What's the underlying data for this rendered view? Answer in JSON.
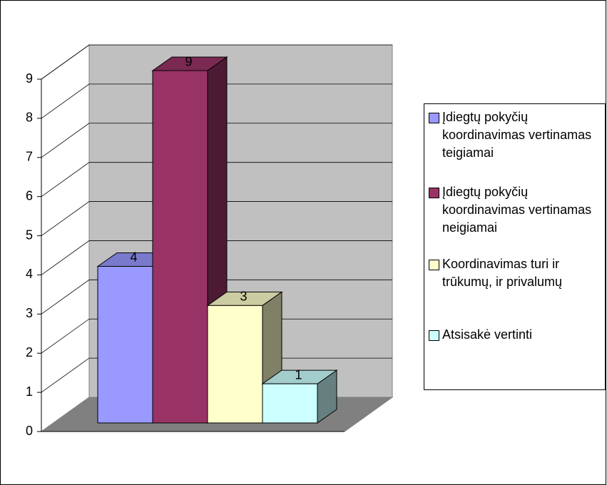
{
  "chart_data": {
    "type": "bar3d",
    "categories": [
      null
    ],
    "series": [
      {
        "name": "Įdiegtų pokyčių koordinavimas vertinamas teigiamai",
        "color": "#9999ff",
        "values": [
          4
        ]
      },
      {
        "name": "Įdiegtų pokyčių koordinavimas vertinamas neigiamai",
        "color": "#993366",
        "values": [
          9
        ]
      },
      {
        "name": "Koordinavimas turi ir trūkumų, ir privalumų",
        "color": "#ffffcc",
        "values": [
          3
        ]
      },
      {
        "name": "Atsisakė vertinti",
        "color": "#ccffff",
        "values": [
          1
        ]
      }
    ],
    "ylim": [
      0,
      9
    ],
    "yticks": [
      0,
      1,
      2,
      3,
      4,
      5,
      6,
      7,
      8,
      9
    ],
    "grid": true,
    "legend": "right"
  }
}
